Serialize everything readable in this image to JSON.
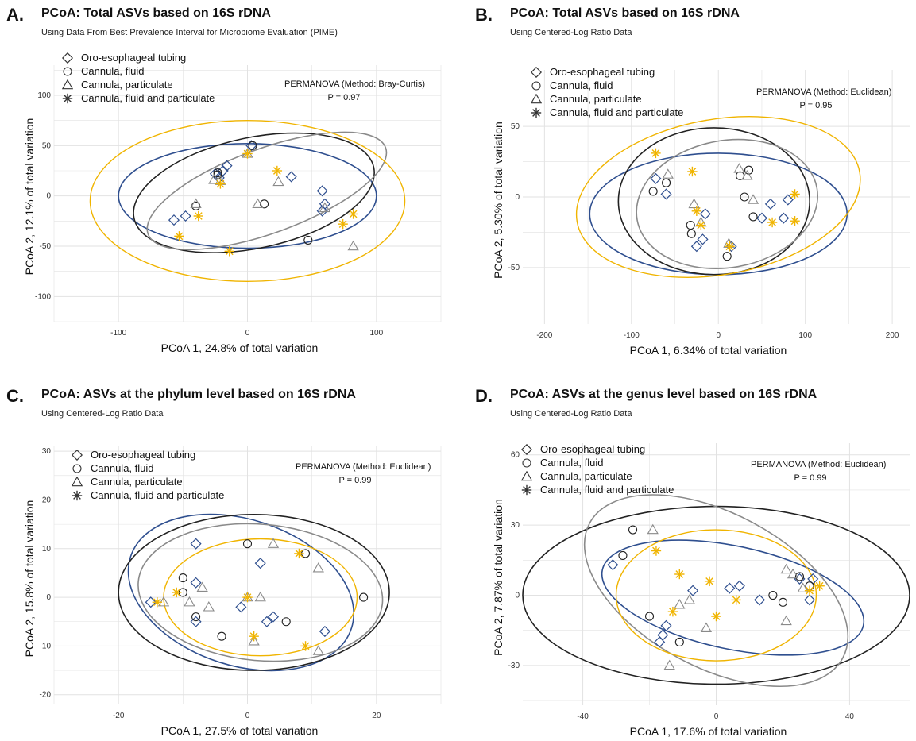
{
  "legend": [
    {
      "label": "Oro-esophageal tubing",
      "shape": "diamond",
      "color": "#2f4f8f"
    },
    {
      "label": "Cannula, fluid",
      "shape": "circle",
      "color": "#444444"
    },
    {
      "label": "Cannula, particulate",
      "shape": "triangle",
      "color": "#888888"
    },
    {
      "label": "Cannula, fluid and particulate",
      "shape": "asterisk",
      "color": "#f0b400"
    }
  ],
  "colors": {
    "tubing": "#2f4f8f",
    "fluid": "#222222",
    "particulate": "#8a8a8a",
    "fluid_particulate": "#f0b400",
    "grid": "#e2e2e2"
  },
  "chart_data": [
    {
      "type": "scatter",
      "panel": "A.",
      "title": "PCoA: Total ASVs based on 16S rDNA",
      "subtitle": "Using Data From Best Prevalence Interval for Microbiome Evaluation (PIME)",
      "xlabel": "PCoA 1, 24.8% of total variation",
      "ylabel": "PCoA 2, 12.1% of total variation",
      "xlim": [
        -150,
        150
      ],
      "ylim": [
        -125,
        130
      ],
      "xticks": [
        -100,
        0,
        100
      ],
      "yticks": [
        -100,
        -50,
        0,
        50,
        100
      ],
      "annotation": "PERMANOVA (Method: Bray-Curtis)",
      "pvalue": "P = 0.97",
      "series": [
        {
          "name": "Oro-esophageal tubing",
          "points": [
            [
              -57,
              -24
            ],
            [
              -48,
              -20
            ],
            [
              -25,
              22
            ],
            [
              -22,
              18
            ],
            [
              -19,
              25
            ],
            [
              -16,
              30
            ],
            [
              3,
              50
            ],
            [
              34,
              19
            ],
            [
              58,
              5
            ],
            [
              60,
              -8
            ],
            [
              58,
              -15
            ]
          ]
        },
        {
          "name": "Cannula, fluid",
          "points": [
            [
              -40,
              -10
            ],
            [
              -23,
              23
            ],
            [
              -23,
              21
            ],
            [
              4,
              50
            ],
            [
              13,
              -8
            ],
            [
              47,
              -44
            ]
          ]
        },
        {
          "name": "Cannula, particulate",
          "points": [
            [
              -40,
              -8
            ],
            [
              -26,
              16
            ],
            [
              -21,
              15
            ],
            [
              0,
              42
            ],
            [
              8,
              -8
            ],
            [
              24,
              14
            ],
            [
              60,
              -12
            ],
            [
              82,
              -50
            ]
          ]
        },
        {
          "name": "Cannula, fluid and particulate",
          "points": [
            [
              -53,
              -40
            ],
            [
              -38,
              -20
            ],
            [
              -21,
              12
            ],
            [
              -14,
              -55
            ],
            [
              0,
              42
            ],
            [
              23,
              25
            ],
            [
              74,
              -28
            ],
            [
              82,
              -18
            ]
          ]
        }
      ],
      "ellipses": [
        {
          "group": "Oro-esophageal tubing",
          "cx": 0,
          "cy": 0,
          "rx": 100,
          "ry": 52,
          "angle": 0
        },
        {
          "group": "Cannula, fluid",
          "cx": 5,
          "cy": 3,
          "rx": 95,
          "ry": 55,
          "angle": -12
        },
        {
          "group": "Cannula, particulate",
          "cx": 15,
          "cy": 5,
          "rx": 98,
          "ry": 42,
          "angle": -20
        },
        {
          "group": "Cannula, fluid and particulate",
          "cx": 0,
          "cy": -5,
          "rx": 122,
          "ry": 80,
          "angle": 0
        }
      ]
    },
    {
      "type": "scatter",
      "panel": "B.",
      "title": "PCoA: Total ASVs based on 16S rDNA",
      "subtitle": "Using Centered-Log Ratio Data",
      "xlabel": "PCoA 1, 6.34% of total variation",
      "ylabel": "PCoA 2, 5.30% of total variation",
      "xlim": [
        -225,
        220
      ],
      "ylim": [
        -90,
        90
      ],
      "xticks": [
        -200,
        -100,
        0,
        100,
        200
      ],
      "yticks": [
        -50,
        0,
        50
      ],
      "annotation": "PERMANOVA (Method: Euclidean)",
      "pvalue": "P = 0.95",
      "series": [
        {
          "name": "Oro-esophageal tubing",
          "points": [
            [
              -72,
              13
            ],
            [
              -60,
              2
            ],
            [
              -25,
              -35
            ],
            [
              -18,
              -30
            ],
            [
              -15,
              -12
            ],
            [
              15,
              -35
            ],
            [
              50,
              -15
            ],
            [
              60,
              -5
            ],
            [
              75,
              -15
            ],
            [
              80,
              -2
            ]
          ]
        },
        {
          "name": "Cannula, fluid",
          "points": [
            [
              -75,
              4
            ],
            [
              -60,
              10
            ],
            [
              -32,
              -20
            ],
            [
              -31,
              -26
            ],
            [
              10,
              -42
            ],
            [
              25,
              15
            ],
            [
              30,
              0
            ],
            [
              35,
              19
            ],
            [
              40,
              -14
            ]
          ]
        },
        {
          "name": "Cannula, particulate",
          "points": [
            [
              -58,
              16
            ],
            [
              -28,
              -5
            ],
            [
              -20,
              -18
            ],
            [
              12,
              -33
            ],
            [
              24,
              20
            ],
            [
              33,
              15
            ],
            [
              40,
              -2
            ]
          ]
        },
        {
          "name": "Cannula, fluid and particulate",
          "points": [
            [
              -72,
              31
            ],
            [
              -30,
              18
            ],
            [
              -25,
              -10
            ],
            [
              -20,
              -20
            ],
            [
              13,
              -35
            ],
            [
              62,
              -18
            ],
            [
              88,
              2
            ],
            [
              88,
              -17
            ]
          ]
        }
      ],
      "ellipses": [
        {
          "group": "Oro-esophageal tubing",
          "cx": 0,
          "cy": -12,
          "rx": 148,
          "ry": 43,
          "angle": 0
        },
        {
          "group": "Cannula, fluid",
          "cx": -5,
          "cy": -3,
          "rx": 110,
          "ry": 52,
          "angle": 0
        },
        {
          "group": "Cannula, particulate",
          "cx": 10,
          "cy": -5,
          "rx": 105,
          "ry": 45,
          "angle": -10
        },
        {
          "group": "Cannula, fluid and particulate",
          "cx": 0,
          "cy": 0,
          "rx": 165,
          "ry": 55,
          "angle": -10
        }
      ]
    },
    {
      "type": "scatter",
      "panel": "C.",
      "title": "PCoA: ASVs at the phylum level based on 16S rDNA",
      "subtitle": "Using Centered-Log Ratio Data",
      "xlabel": "PCoA 1, 27.5% of total variation",
      "ylabel": "PCoA 2, 15.8% of total variation",
      "xlim": [
        -30,
        30
      ],
      "ylim": [
        -22,
        31
      ],
      "xticks": [
        -20,
        0,
        20
      ],
      "yticks": [
        -20,
        -10,
        0,
        10,
        20,
        30
      ],
      "annotation": "PERMANOVA (Method: Euclidean)",
      "pvalue": "P = 0.99",
      "series": [
        {
          "name": "Oro-esophageal tubing",
          "points": [
            [
              -15,
              -1
            ],
            [
              -8,
              11
            ],
            [
              -8,
              3
            ],
            [
              -8,
              -5
            ],
            [
              -1,
              -2
            ],
            [
              2,
              7
            ],
            [
              3,
              -5
            ],
            [
              4,
              -4
            ],
            [
              12,
              -7
            ]
          ]
        },
        {
          "name": "Cannula, fluid",
          "points": [
            [
              -10,
              1
            ],
            [
              -10,
              4
            ],
            [
              -8,
              -4
            ],
            [
              -4,
              -8
            ],
            [
              0,
              11
            ],
            [
              6,
              -5
            ],
            [
              9,
              9
            ],
            [
              18,
              0
            ]
          ]
        },
        {
          "name": "Cannula, particulate",
          "points": [
            [
              -13,
              -1
            ],
            [
              -9,
              -1
            ],
            [
              -7,
              2
            ],
            [
              -6,
              -2
            ],
            [
              0,
              0
            ],
            [
              2,
              0
            ],
            [
              4,
              11
            ],
            [
              11,
              6
            ],
            [
              11,
              -11
            ],
            [
              1,
              -9
            ]
          ]
        },
        {
          "name": "Cannula, fluid and particulate",
          "points": [
            [
              -14,
              -1
            ],
            [
              -11,
              1
            ],
            [
              0,
              0
            ],
            [
              1,
              -8
            ],
            [
              8,
              9
            ],
            [
              9,
              -10
            ]
          ]
        }
      ],
      "ellipses": [
        {
          "group": "Oro-esophageal tubing",
          "cx": -1,
          "cy": 1,
          "rx": 18,
          "ry": 15,
          "angle": 18
        },
        {
          "group": "Cannula, fluid",
          "cx": 1,
          "cy": 1,
          "rx": 21,
          "ry": 16,
          "angle": 0
        },
        {
          "group": "Cannula, particulate",
          "cx": 2,
          "cy": 1,
          "rx": 19,
          "ry": 14,
          "angle": 5
        },
        {
          "group": "Cannula, fluid and particulate",
          "cx": 2,
          "cy": 0,
          "rx": 15,
          "ry": 12,
          "angle": 0
        }
      ]
    },
    {
      "type": "scatter",
      "panel": "D.",
      "title": "PCoA: ASVs at the genus level based on 16S rDNA",
      "subtitle": "Using Centered-Log Ratio Data",
      "xlabel": "PCoA 1, 17.6% of total variation",
      "ylabel": "PCoA 2, 7.87% of total variation",
      "xlim": [
        -58,
        58
      ],
      "ylim": [
        -47,
        65
      ],
      "xticks": [
        -40,
        0,
        40
      ],
      "yticks": [
        -30,
        0,
        30,
        60
      ],
      "annotation": "PERMANOVA (Method: Euclidean)",
      "pvalue": "P = 0.99",
      "series": [
        {
          "name": "Oro-esophageal tubing",
          "points": [
            [
              -31,
              13
            ],
            [
              -17,
              -20
            ],
            [
              -16,
              -17
            ],
            [
              -15,
              -13
            ],
            [
              -7,
              2
            ],
            [
              4,
              3
            ],
            [
              7,
              4
            ],
            [
              13,
              -2
            ],
            [
              25,
              7
            ],
            [
              28,
              -2
            ],
            [
              29,
              7
            ]
          ]
        },
        {
          "name": "Cannula, fluid",
          "points": [
            [
              -28,
              17
            ],
            [
              -25,
              28
            ],
            [
              -20,
              -9
            ],
            [
              -11,
              -20
            ],
            [
              17,
              0
            ],
            [
              20,
              -3
            ],
            [
              25,
              8
            ],
            [
              28,
              4
            ]
          ]
        },
        {
          "name": "Cannula, particulate",
          "points": [
            [
              -19,
              28
            ],
            [
              -11,
              -4
            ],
            [
              -8,
              -2
            ],
            [
              -3,
              -14
            ],
            [
              21,
              11
            ],
            [
              23,
              9
            ],
            [
              26,
              3
            ],
            [
              -14,
              -30
            ],
            [
              21,
              -11
            ]
          ]
        },
        {
          "name": "Cannula, fluid and particulate",
          "points": [
            [
              -18,
              19
            ],
            [
              -11,
              9
            ],
            [
              -13,
              -7
            ],
            [
              -2,
              6
            ],
            [
              0,
              -9
            ],
            [
              6,
              -2
            ],
            [
              28,
              2
            ],
            [
              31,
              4
            ]
          ]
        }
      ],
      "ellipses": [
        {
          "group": "Oro-esophageal tubing",
          "cx": 5,
          "cy": -1,
          "rx": 40,
          "ry": 22,
          "angle": 12
        },
        {
          "group": "Cannula, fluid",
          "cx": 0,
          "cy": 0,
          "rx": 58,
          "ry": 38,
          "angle": 0
        },
        {
          "group": "Cannula, particulate",
          "cx": 0,
          "cy": 2,
          "rx": 43,
          "ry": 33,
          "angle": 28
        },
        {
          "group": "Cannula, fluid and particulate",
          "cx": 0,
          "cy": 0,
          "rx": 30,
          "ry": 28,
          "angle": 0
        }
      ]
    }
  ]
}
